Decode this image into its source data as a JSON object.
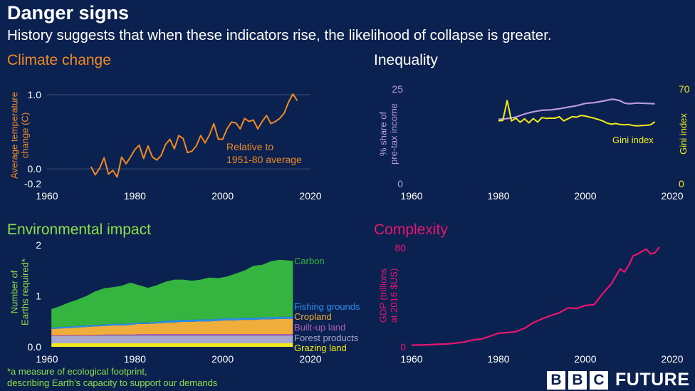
{
  "header": {
    "title": "Danger signs",
    "subtitle": "History suggests that when these indicators rise, the likelihood of collapse is greater."
  },
  "footnote": {
    "line1": "*a measure of ecological footprint,",
    "line2": "describing Earth’s capacity to support our demands"
  },
  "brand": {
    "letters": [
      "B",
      "B",
      "C"
    ],
    "word": "FUTURE"
  },
  "colors": {
    "background": "#0b2150",
    "climate": "#f08a24",
    "inequality_share": "#b99be0",
    "gini": "#f2ea1c",
    "environment_title": "#8ee04a",
    "complexity": "#e8166f",
    "axis_text": "#ffffff",
    "grid": "#3a4f78"
  },
  "chart_data": [
    {
      "id": "climate",
      "type": "line",
      "title": "Climate change",
      "ylabel_lines": [
        "Average temperature",
        "change (C)"
      ],
      "xlim": [
        1960,
        2020
      ],
      "ylim": [
        -0.2,
        1.0
      ],
      "xticks": [
        1960,
        1980,
        2000,
        2020
      ],
      "yticks": [
        -0.2,
        0.0,
        1.0
      ],
      "ytick_labels": [
        "-0.2",
        "0.0",
        "1.0"
      ],
      "grid": true,
      "annotation_lines": [
        "Relative to",
        "1951-80 average"
      ],
      "x": [
        1970,
        1971,
        1972,
        1973,
        1974,
        1975,
        1976,
        1977,
        1978,
        1979,
        1980,
        1981,
        1982,
        1983,
        1984,
        1985,
        1986,
        1987,
        1988,
        1989,
        1990,
        1991,
        1992,
        1993,
        1994,
        1995,
        1996,
        1997,
        1998,
        1999,
        2000,
        2001,
        2002,
        2003,
        2004,
        2005,
        2006,
        2007,
        2008,
        2009,
        2010,
        2011,
        2012,
        2013,
        2014,
        2015,
        2016,
        2017
      ],
      "y": [
        0.03,
        -0.08,
        0.01,
        0.15,
        -0.07,
        -0.02,
        -0.11,
        0.16,
        0.07,
        0.16,
        0.26,
        0.32,
        0.14,
        0.31,
        0.16,
        0.12,
        0.18,
        0.33,
        0.4,
        0.27,
        0.45,
        0.41,
        0.22,
        0.24,
        0.31,
        0.45,
        0.35,
        0.46,
        0.61,
        0.4,
        0.4,
        0.54,
        0.63,
        0.62,
        0.54,
        0.68,
        0.64,
        0.66,
        0.54,
        0.64,
        0.72,
        0.61,
        0.64,
        0.68,
        0.75,
        0.9,
        1.01,
        0.92
      ]
    },
    {
      "id": "inequality",
      "type": "line",
      "title": "Inequality",
      "ylabel_lines": [
        "% share of",
        "pre-tax income"
      ],
      "y2label": "Gini index",
      "xlim": [
        1960,
        2020
      ],
      "ylim": [
        0,
        25
      ],
      "y2lim": [
        0,
        70
      ],
      "xticks": [
        1960,
        1980,
        2000,
        2020
      ],
      "yticks": [
        0,
        25
      ],
      "y2ticks": [
        0,
        70
      ],
      "grid": false,
      "series": [
        {
          "values_axis": "left",
          "x": [
            1980,
            1982,
            1984,
            1986,
            1988,
            1990,
            1992,
            1994,
            1996,
            1998,
            2000,
            2002,
            2004,
            2006,
            2007,
            2008,
            2009,
            2010,
            2012,
            2014,
            2016
          ],
          "y": [
            17.0,
            17.2,
            17.6,
            18.4,
            19.0,
            19.4,
            19.5,
            19.8,
            20.2,
            20.6,
            21.2,
            21.4,
            21.8,
            22.3,
            22.2,
            21.9,
            21.3,
            21.1,
            21.3,
            21.2,
            21.1
          ]
        },
        {
          "name": "Gini index",
          "values_axis": "right",
          "x": [
            1980,
            1981,
            1982,
            1983,
            1984,
            1985,
            1986,
            1987,
            1988,
            1989,
            1990,
            1991,
            1992,
            1993,
            1994,
            1995,
            1996,
            1997,
            1998,
            1999,
            2000,
            2001,
            2002,
            2003,
            2004,
            2005,
            2006,
            2007,
            2008,
            2009,
            2010,
            2011,
            2012,
            2013,
            2014,
            2015,
            2016
          ],
          "y": [
            46.5,
            46.8,
            61.5,
            46.4,
            48.5,
            45.5,
            48.0,
            45.0,
            48.2,
            45.6,
            48.9,
            48.3,
            48.5,
            48.4,
            49.5,
            46.5,
            48.0,
            49.6,
            49.2,
            50.5,
            50.0,
            49.2,
            48.5,
            47.5,
            46.5,
            44.8,
            44.0,
            44.5,
            43.8,
            43.5,
            43.8,
            43.0,
            42.8,
            43.0,
            43.2,
            43.5,
            45.8
          ]
        }
      ]
    },
    {
      "id": "environment",
      "type": "area",
      "title": "Environmental impact",
      "ylabel_lines": [
        "Number of",
        "Earths required*"
      ],
      "xlim": [
        1960,
        2020
      ],
      "ylim": [
        0,
        2
      ],
      "xticks": [
        1960,
        1980,
        2000,
        2020
      ],
      "yticks": [
        0,
        1,
        2
      ],
      "ytick_labels": [
        "0.0",
        "1",
        "2"
      ],
      "grid": false,
      "x": [
        1961,
        1963,
        1965,
        1967,
        1969,
        1971,
        1973,
        1975,
        1977,
        1979,
        1981,
        1983,
        1985,
        1987,
        1989,
        1991,
        1993,
        1995,
        1997,
        1999,
        2001,
        2003,
        2005,
        2007,
        2009,
        2011,
        2013,
        2016
      ],
      "series": [
        {
          "name": "Grazing land",
          "color": "#f2ea1c",
          "values": [
            0.07,
            0.07,
            0.07,
            0.07,
            0.07,
            0.07,
            0.07,
            0.07,
            0.07,
            0.07,
            0.07,
            0.07,
            0.07,
            0.07,
            0.07,
            0.07,
            0.07,
            0.07,
            0.07,
            0.07,
            0.07,
            0.07,
            0.07,
            0.07,
            0.07,
            0.07,
            0.07,
            0.07
          ]
        },
        {
          "name": "Forest products",
          "color": "#a8a8cc",
          "values": [
            0.14,
            0.14,
            0.14,
            0.14,
            0.14,
            0.14,
            0.15,
            0.15,
            0.15,
            0.15,
            0.15,
            0.15,
            0.15,
            0.15,
            0.15,
            0.15,
            0.15,
            0.15,
            0.15,
            0.15,
            0.15,
            0.15,
            0.15,
            0.15,
            0.15,
            0.15,
            0.15,
            0.15
          ]
        },
        {
          "name": "Built-up land",
          "color": "#b15fb4",
          "values": [
            0.02,
            0.02,
            0.02,
            0.02,
            0.02,
            0.02,
            0.02,
            0.02,
            0.02,
            0.02,
            0.03,
            0.03,
            0.03,
            0.03,
            0.03,
            0.03,
            0.03,
            0.03,
            0.03,
            0.03,
            0.03,
            0.03,
            0.03,
            0.03,
            0.03,
            0.03,
            0.03,
            0.03
          ]
        },
        {
          "name": "Cropland",
          "color": "#efae3c",
          "values": [
            0.12,
            0.13,
            0.14,
            0.15,
            0.16,
            0.17,
            0.17,
            0.18,
            0.18,
            0.19,
            0.2,
            0.2,
            0.21,
            0.22,
            0.23,
            0.24,
            0.24,
            0.25,
            0.25,
            0.26,
            0.27,
            0.27,
            0.28,
            0.28,
            0.29,
            0.29,
            0.3,
            0.3
          ]
        },
        {
          "name": "Fishing grounds",
          "color": "#2b8fe8",
          "values": [
            0.03,
            0.03,
            0.03,
            0.03,
            0.03,
            0.03,
            0.03,
            0.03,
            0.03,
            0.03,
            0.03,
            0.03,
            0.03,
            0.04,
            0.04,
            0.04,
            0.04,
            0.04,
            0.04,
            0.04,
            0.04,
            0.04,
            0.04,
            0.04,
            0.04,
            0.04,
            0.04,
            0.04
          ]
        },
        {
          "name": "Carbon",
          "color": "#35b540",
          "values": [
            0.36,
            0.41,
            0.47,
            0.52,
            0.58,
            0.66,
            0.71,
            0.72,
            0.75,
            0.8,
            0.73,
            0.68,
            0.72,
            0.77,
            0.8,
            0.79,
            0.77,
            0.78,
            0.82,
            0.8,
            0.82,
            0.88,
            0.93,
            1.02,
            1.03,
            1.1,
            1.12,
            1.1
          ]
        }
      ]
    },
    {
      "id": "complexity",
      "type": "line",
      "title": "Complexity",
      "ylabel_lines": [
        "GDP (trillions",
        "at 2016 $US)"
      ],
      "xlim": [
        1960,
        2020
      ],
      "ylim": [
        0,
        80
      ],
      "xticks": [
        1960,
        1980,
        2000,
        2020
      ],
      "yticks": [
        0,
        80
      ],
      "grid": false,
      "x": [
        1960,
        1962,
        1964,
        1966,
        1968,
        1970,
        1972,
        1974,
        1976,
        1978,
        1980,
        1982,
        1984,
        1986,
        1988,
        1990,
        1992,
        1994,
        1996,
        1998,
        2000,
        2002,
        2004,
        2006,
        2008,
        2009,
        2010,
        2011,
        2012,
        2014,
        2015,
        2016,
        2017
      ],
      "y": [
        1.4,
        1.5,
        1.7,
        2.1,
        2.3,
        3.0,
        3.8,
        5.5,
        6.3,
        8.5,
        11.0,
        11.5,
        12.3,
        15.0,
        19.5,
        22.6,
        25.2,
        27.5,
        31.5,
        31.0,
        33.5,
        34.0,
        43.0,
        51.0,
        63.0,
        60.5,
        66.0,
        73.5,
        75.0,
        79.0,
        75.2,
        76.0,
        80.5
      ]
    }
  ]
}
